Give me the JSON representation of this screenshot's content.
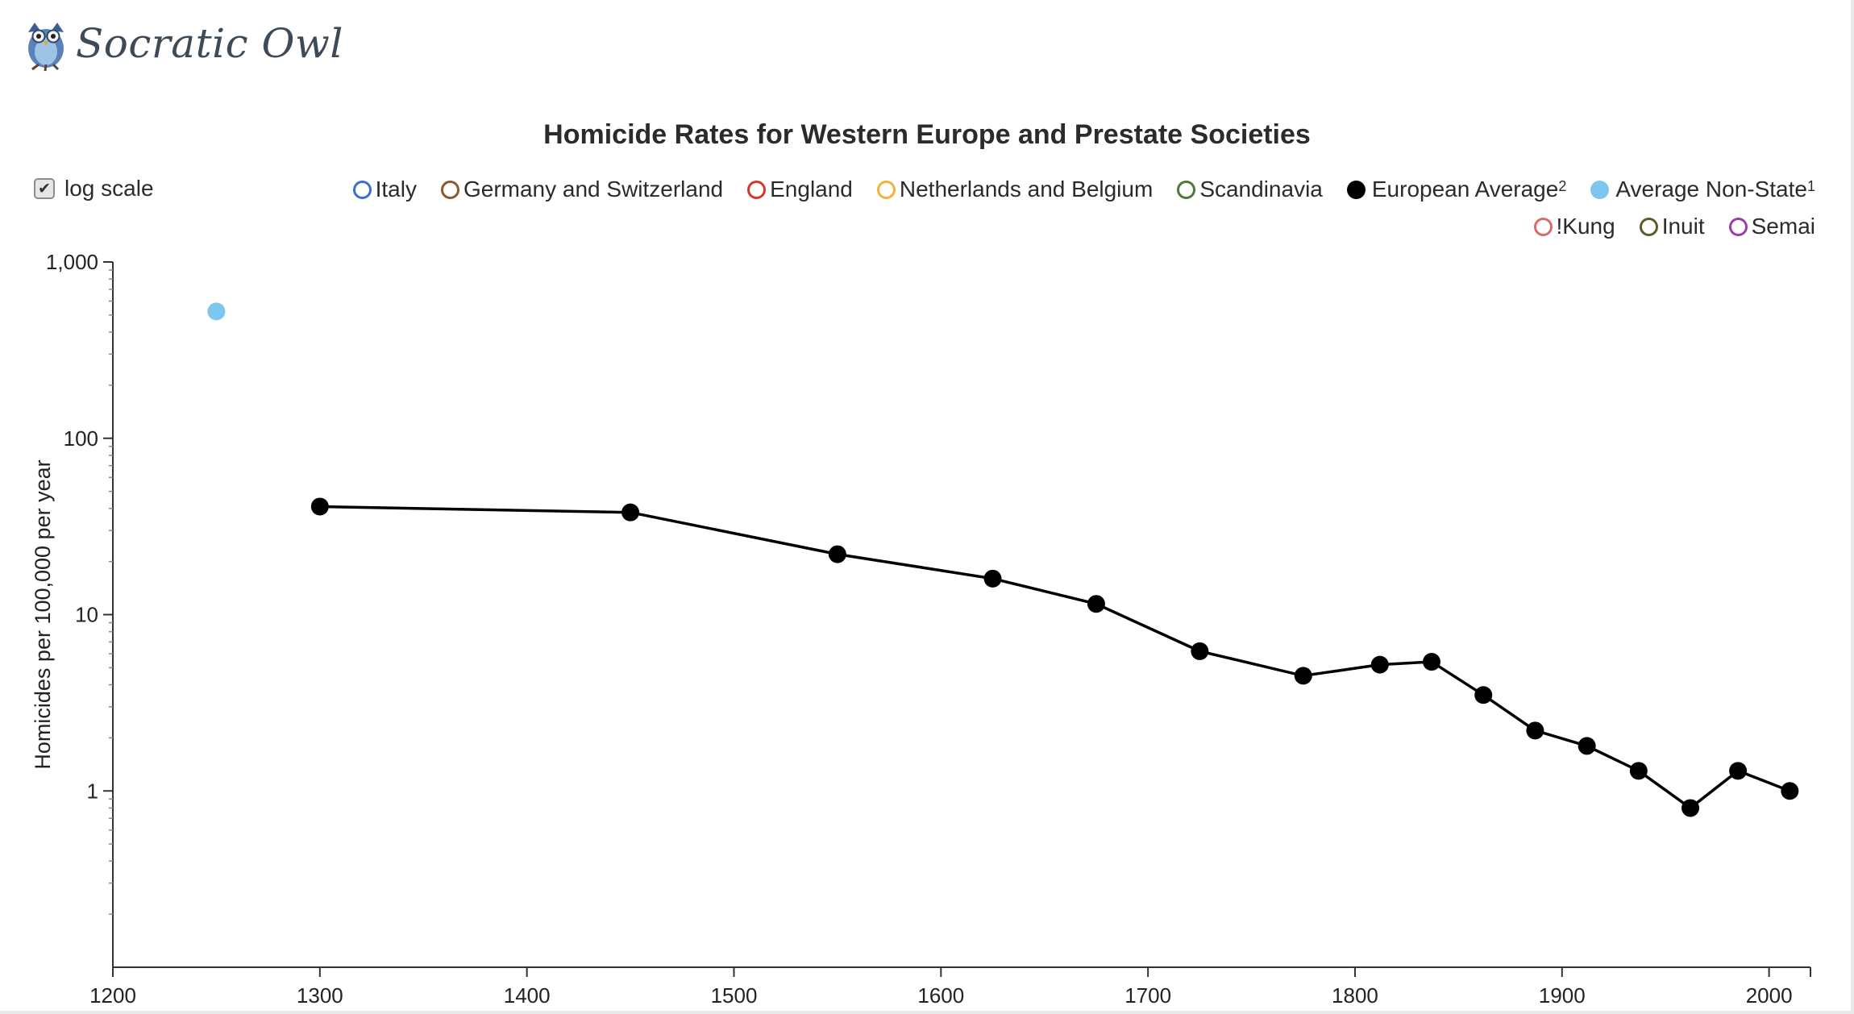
{
  "brand": {
    "name": "Socratic Owl"
  },
  "controls": {
    "log_scale_label": "log scale",
    "log_scale_checked": true,
    "check_glyph": "✔"
  },
  "chart_data": {
    "type": "line",
    "title": "Homicide Rates for Western Europe and Prestate Societies",
    "xlabel": "",
    "ylabel": "Homicides per 100,000 per year",
    "y_scale": "log",
    "xlim": [
      1200,
      2020
    ],
    "ylim": [
      0.1,
      1000
    ],
    "x_ticks": [
      1200,
      1300,
      1400,
      1500,
      1600,
      1700,
      1800,
      1900,
      2000
    ],
    "y_ticks": [
      1,
      10,
      100,
      1000
    ],
    "y_tick_labels": [
      "1",
      "10",
      "100",
      "1,000"
    ],
    "legend_position": "top-right",
    "legend_rows": [
      [
        {
          "name": "Italy",
          "color": "#3a6fd0",
          "filled": false,
          "sup": ""
        },
        {
          "name": "Germany and Switzerland",
          "color": "#8b5a2b",
          "filled": false,
          "sup": ""
        },
        {
          "name": "England",
          "color": "#d6352b",
          "filled": false,
          "sup": ""
        },
        {
          "name": "Netherlands and Belgium",
          "color": "#f3b23b",
          "filled": false,
          "sup": ""
        },
        {
          "name": "Scandinavia",
          "color": "#4e7a3a",
          "filled": false,
          "sup": ""
        },
        {
          "name": "European Average",
          "color": "#000000",
          "filled": true,
          "sup": "2"
        },
        {
          "name": "Average Non-State",
          "color": "#7cc6f0",
          "filled": true,
          "sup": "1"
        }
      ],
      [
        {
          "name": "!Kung",
          "color": "#d76b6b",
          "filled": false,
          "sup": ""
        },
        {
          "name": "Inuit",
          "color": "#5d5a2e",
          "filled": false,
          "sup": ""
        },
        {
          "name": "Semai",
          "color": "#9a3ea8",
          "filled": false,
          "sup": ""
        }
      ]
    ],
    "series": [
      {
        "name": "European Average",
        "color": "#000000",
        "line": true,
        "points": [
          [
            1300,
            41
          ],
          [
            1450,
            38
          ],
          [
            1550,
            22
          ],
          [
            1625,
            16
          ],
          [
            1675,
            11.5
          ],
          [
            1725,
            6.2
          ],
          [
            1775,
            4.5
          ],
          [
            1812,
            5.2
          ],
          [
            1837,
            5.4
          ],
          [
            1862,
            3.5
          ],
          [
            1887,
            2.2
          ],
          [
            1912,
            1.8
          ],
          [
            1937,
            1.3
          ],
          [
            1962,
            0.8
          ],
          [
            1985,
            1.3
          ],
          [
            2010,
            1.0
          ]
        ]
      },
      {
        "name": "Average Non-State",
        "color": "#7cc6f0",
        "line": false,
        "points": [
          [
            1250,
            524
          ]
        ]
      }
    ]
  }
}
